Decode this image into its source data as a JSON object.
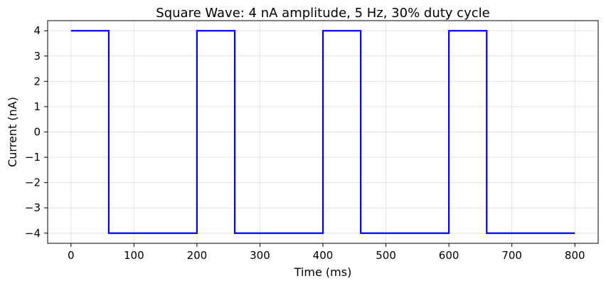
{
  "chart_data": {
    "type": "line",
    "title": "Square Wave: 4 nA amplitude, 5 Hz, 30% duty cycle",
    "xlabel": "Time (ms)",
    "ylabel": "Current (nA)",
    "xlim": [
      -37,
      837
    ],
    "ylim": [
      -4.4,
      4.4
    ],
    "x_ticks": [
      0,
      100,
      200,
      300,
      400,
      500,
      600,
      700,
      800
    ],
    "x_tick_labels": [
      "0",
      "100",
      "200",
      "300",
      "400",
      "500",
      "600",
      "700",
      "800"
    ],
    "y_ticks": [
      4,
      3,
      2,
      1,
      0,
      -1,
      -2,
      -3,
      -4
    ],
    "y_tick_labels": [
      "4",
      "3",
      "2",
      "1",
      "0",
      "−1",
      "−2",
      "−3",
      "−4"
    ],
    "grid": true,
    "series": [
      {
        "color": "#0000ff",
        "step_points": [
          [
            0,
            4
          ],
          [
            60,
            4
          ],
          [
            60,
            -4
          ],
          [
            200,
            -4
          ],
          [
            200,
            4
          ],
          [
            260,
            4
          ],
          [
            260,
            -4
          ],
          [
            400,
            -4
          ],
          [
            400,
            4
          ],
          [
            460,
            4
          ],
          [
            460,
            -4
          ],
          [
            600,
            -4
          ],
          [
            600,
            4
          ],
          [
            660,
            4
          ],
          [
            660,
            -4
          ],
          [
            800,
            -4
          ]
        ]
      }
    ]
  }
}
